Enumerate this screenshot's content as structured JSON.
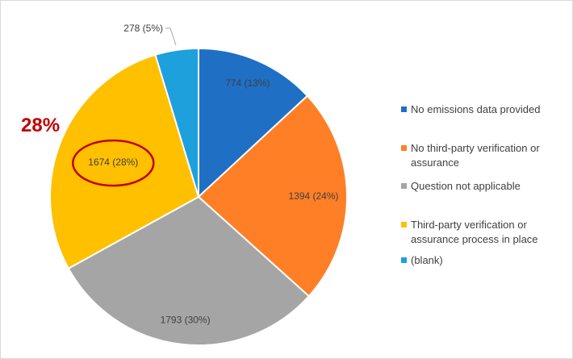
{
  "chart_data": {
    "type": "pie",
    "categories": [
      "No emissions data provided",
      "No third-party verification or assurance",
      "Question not applicable",
      "Third-party verification or assurance process in place",
      "(blank)"
    ],
    "values": [
      774,
      1394,
      1793,
      1674,
      278
    ],
    "percent_labels": [
      "13%",
      "24%",
      "30%",
      "28%",
      "5%"
    ],
    "data_labels": [
      "774 (13%)",
      "1394 (24%)",
      "1793 (30%)",
      "1674 (28%)",
      "278 (5%)"
    ],
    "colors": [
      "#1f6fc5",
      "#ff7f27",
      "#a5a5a5",
      "#ffc000",
      "#1ea0dc"
    ],
    "legend": {
      "position": "right",
      "entries": [
        [
          "No emissions data provided"
        ],
        [
          "No third-party verification or",
          "assurance"
        ],
        [
          "Question not applicable"
        ],
        [
          "Third-party verification or",
          "assurance process in place"
        ],
        [
          "(blank)"
        ]
      ]
    },
    "start_angle_deg": 0,
    "direction": "clockwise",
    "annotation": {
      "text": "28%",
      "color": "#c00000",
      "highlights_slice": 3
    }
  }
}
